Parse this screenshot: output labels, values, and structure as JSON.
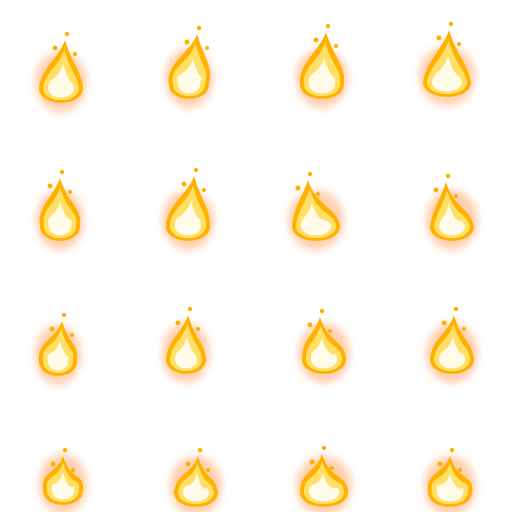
{
  "sprite_sheet": {
    "rows": 4,
    "cols": 4,
    "frame_count": 16,
    "sprite": "fire-flame",
    "colors": {
      "background": "#ffffff",
      "glow": "#ff7a1e",
      "outer": "#ffb000",
      "mid": "#ffe066",
      "core": "#fffbe8"
    }
  }
}
